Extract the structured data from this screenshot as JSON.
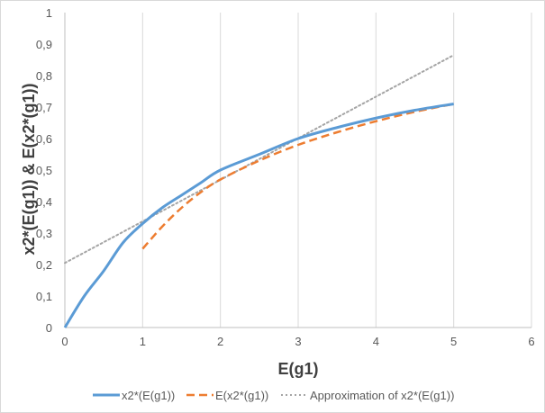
{
  "chart_data": {
    "type": "line",
    "xlabel": "E(g1)",
    "ylabel": "x2*(E(g1)) & E(x2*(g1))",
    "xlim": [
      0,
      6
    ],
    "ylim": [
      0,
      1
    ],
    "x_ticks": [
      "0",
      "1",
      "2",
      "3",
      "4",
      "5",
      "6"
    ],
    "y_ticks": [
      "0",
      "0,1",
      "0,2",
      "0,3",
      "0,4",
      "0,5",
      "0,6",
      "0,7",
      "0,8",
      "0,9",
      "1"
    ],
    "grid": "vertical",
    "legend_position": "bottom",
    "series": [
      {
        "name": "x2*(E(g1))",
        "color": "#5b9bd5",
        "style": "solid",
        "x": [
          0,
          0.25,
          0.5,
          0.75,
          1,
          1.25,
          1.5,
          1.75,
          2,
          2.5,
          3,
          3.5,
          4,
          4.5,
          5
        ],
        "y": [
          0,
          0.1,
          0.18,
          0.27,
          0.33,
          0.38,
          0.42,
          0.46,
          0.5,
          0.55,
          0.6,
          0.635,
          0.665,
          0.69,
          0.71
        ]
      },
      {
        "name": "E(x2*(g1))",
        "color": "#ed7d31",
        "style": "dashed",
        "x": [
          1,
          1.25,
          1.5,
          1.75,
          2,
          2.5,
          3,
          3.5,
          4,
          4.5,
          5
        ],
        "y": [
          0.25,
          0.32,
          0.38,
          0.43,
          0.47,
          0.53,
          0.58,
          0.62,
          0.655,
          0.685,
          0.71
        ]
      },
      {
        "name": "Approximation of x2*(E(g1))",
        "color": "#a5a5a5",
        "style": "dotted",
        "x": [
          0,
          5
        ],
        "y": [
          0.205,
          0.865
        ]
      }
    ]
  }
}
